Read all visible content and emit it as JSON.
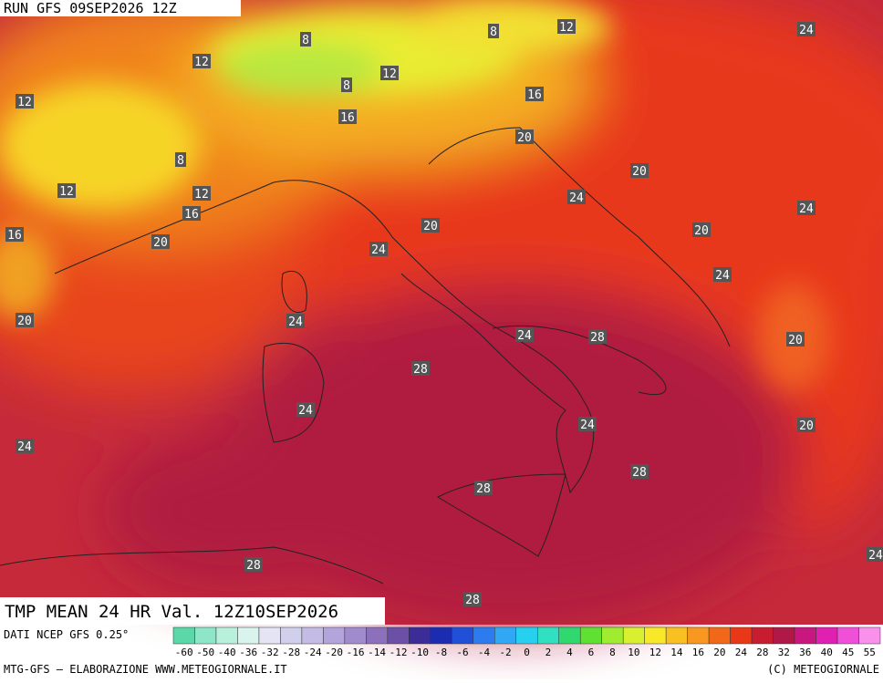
{
  "header": {
    "run": "RUN GFS 09SEP2026 12Z"
  },
  "map": {
    "contour_labels": [
      "8",
      "8",
      "12",
      "24",
      "12",
      "12",
      "8",
      "12",
      "16",
      "16",
      "20",
      "8",
      "20",
      "12",
      "12",
      "24",
      "16",
      "24",
      "20",
      "20",
      "16",
      "20",
      "24",
      "24",
      "20",
      "24",
      "24",
      "28",
      "20",
      "28",
      "24",
      "24",
      "20",
      "24",
      "28",
      "28",
      "24",
      "28",
      "28"
    ]
  },
  "footer": {
    "variable": "TMP MEAN 24 HR Val. 12Z10SEP2026",
    "source": "DATI NCEP GFS 0.25°",
    "credit": "MTG-GFS — ELABORAZIONE WWW.METEOGIORNALE.IT",
    "copyright": "(C) METEOGIORNALE"
  },
  "colorbar": {
    "labels": [
      "-60",
      "-50",
      "-40",
      "-36",
      "-32",
      "-28",
      "-24",
      "-20",
      "-16",
      "-14",
      "-12",
      "-10",
      "-8",
      "-6",
      "-4",
      "-2",
      "0",
      "2",
      "4",
      "6",
      "8",
      "10",
      "12",
      "14",
      "16",
      "20",
      "24",
      "28",
      "32",
      "36",
      "40",
      "45",
      "55"
    ]
  }
}
